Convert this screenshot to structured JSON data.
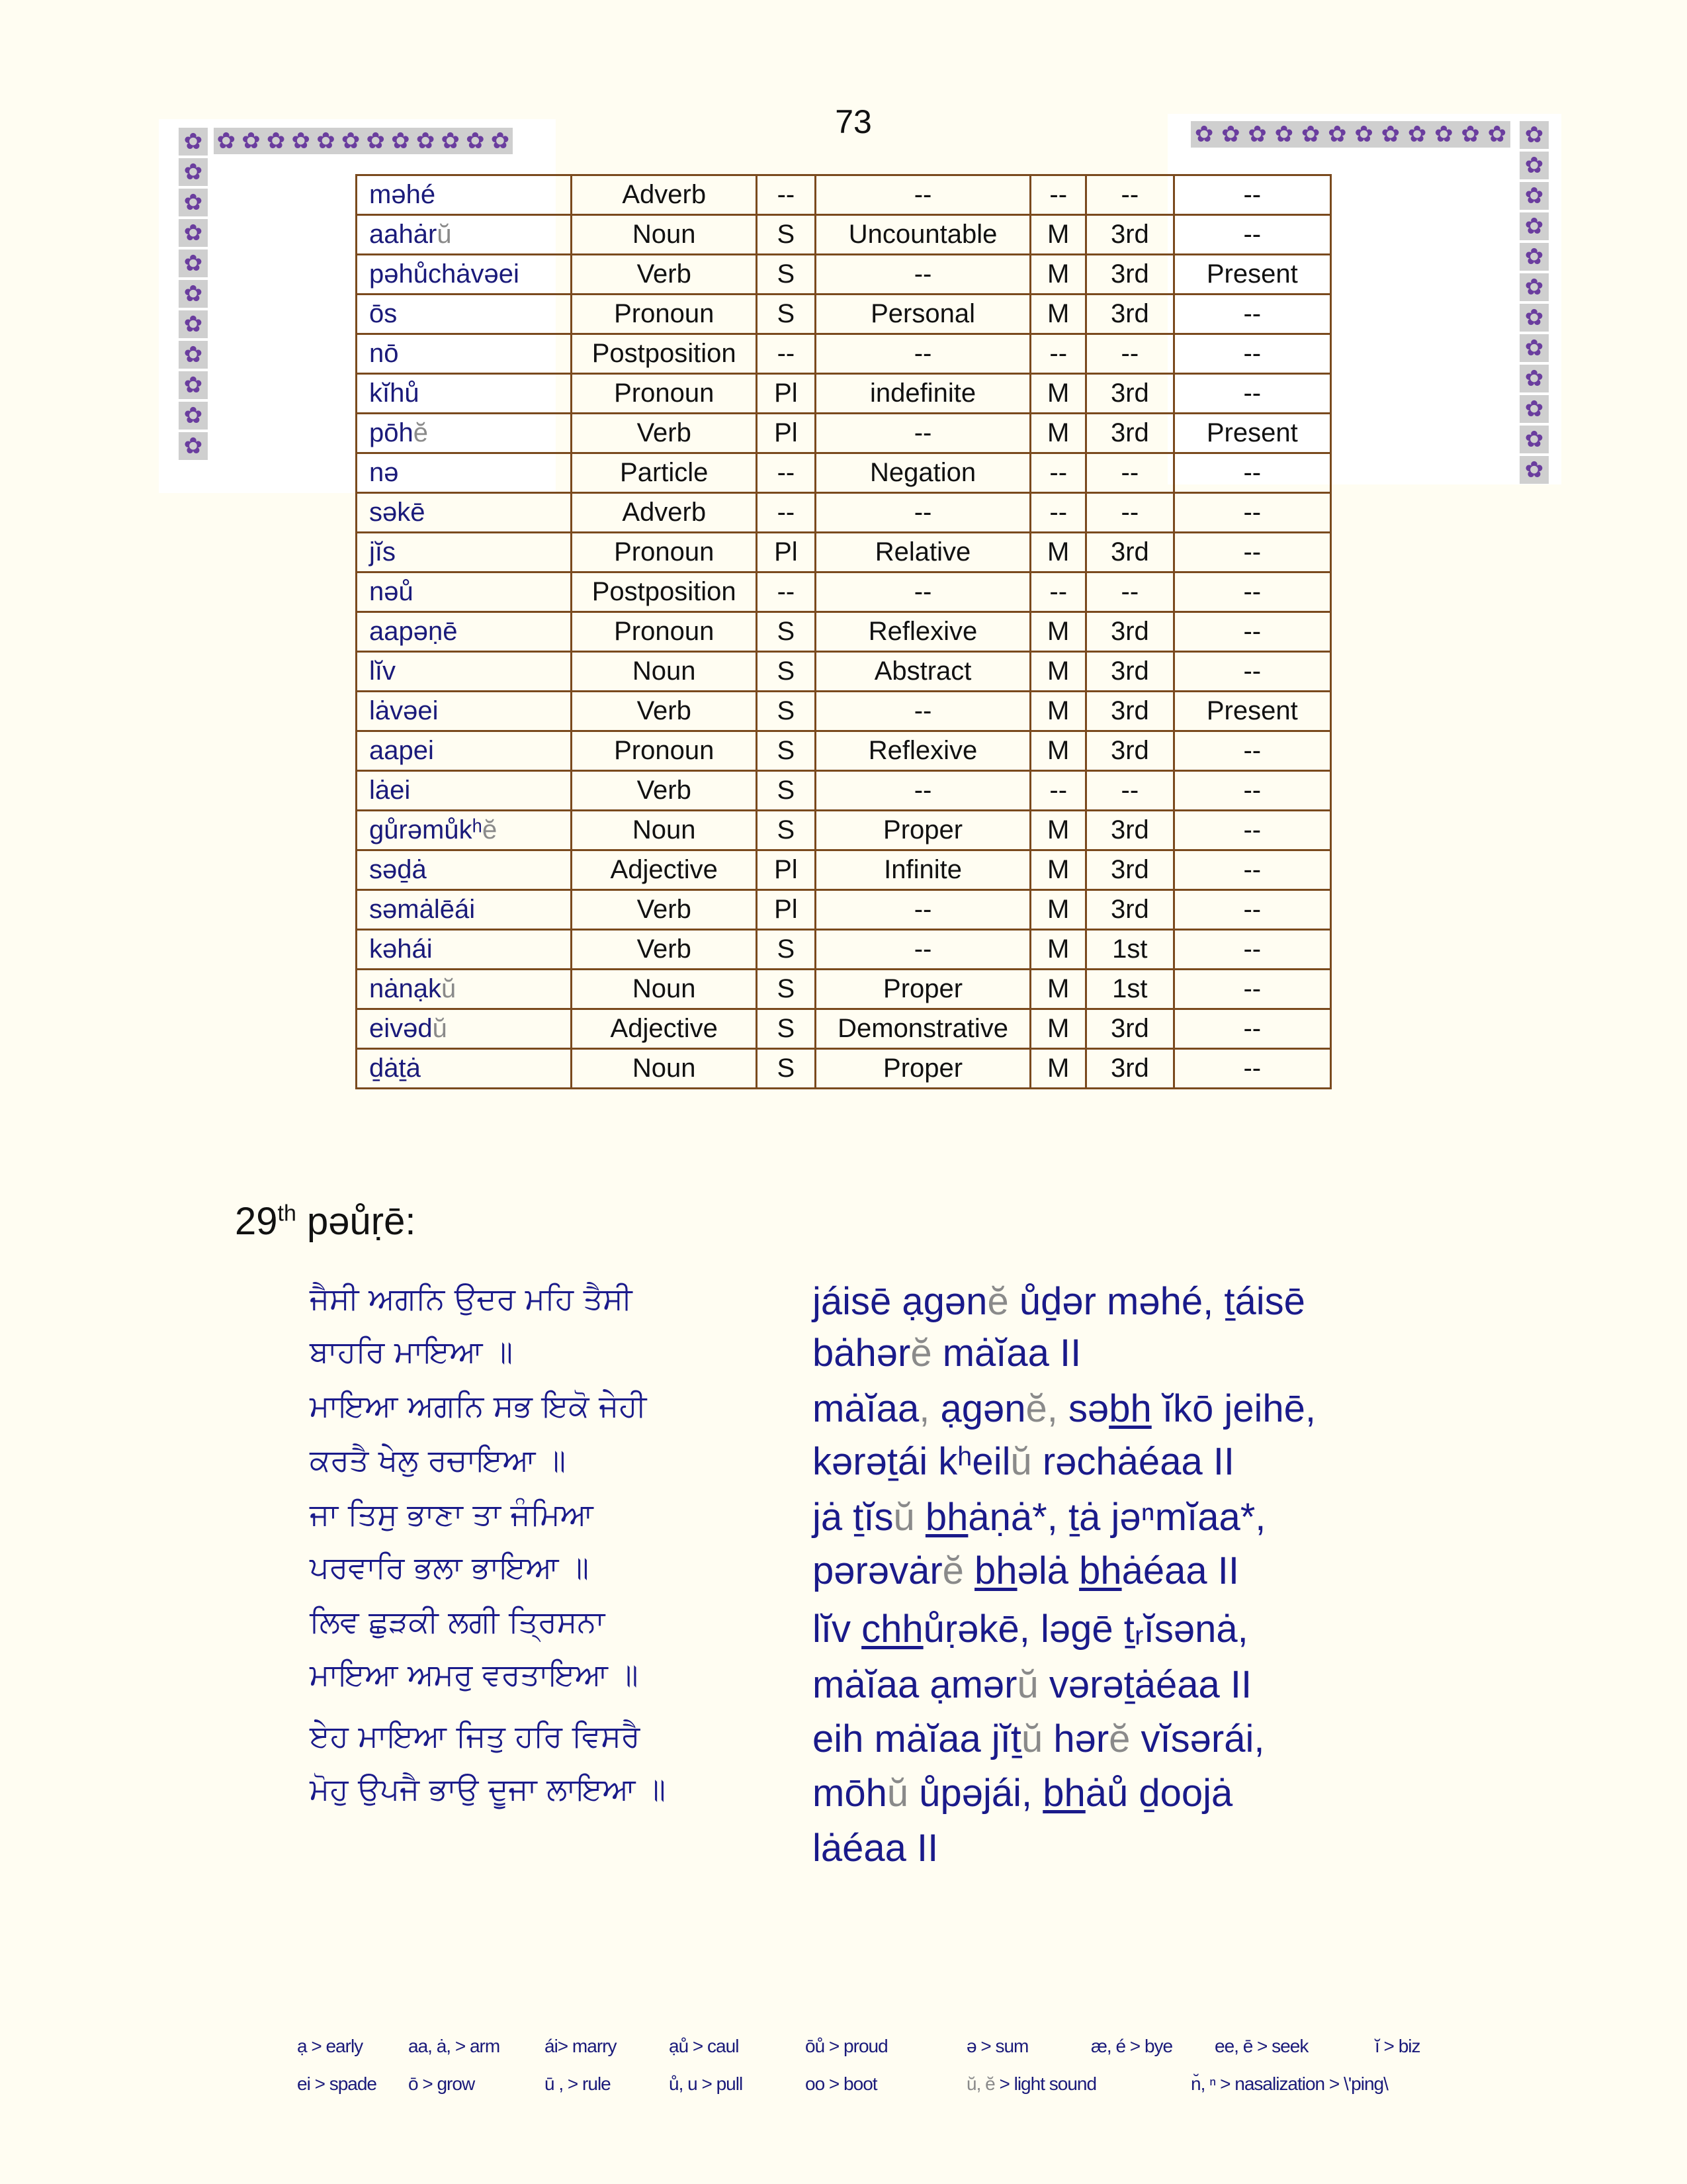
{
  "page_number": "73",
  "ornament": {
    "glyph": "✿",
    "color": "#6a3d9e",
    "background": "#cfcfcf",
    "icon": "flower-icon"
  },
  "table": {
    "rows": [
      {
        "word": [
          [
            "məhé",
            ""
          ]
        ],
        "pos": "Adverb",
        "num": "--",
        "type": "--",
        "gender": "--",
        "person": "--",
        "tense": "--"
      },
      {
        "word": [
          [
            "aahȧr",
            ""
          ],
          [
            "ŭ",
            "g"
          ]
        ],
        "pos": "Noun",
        "num": "S",
        "type": "Uncountable",
        "gender": "M",
        "person": "3rd",
        "tense": "--"
      },
      {
        "word": [
          [
            "pəhůchȧvəei",
            ""
          ]
        ],
        "pos": "Verb",
        "num": "S",
        "type": "--",
        "gender": "M",
        "person": "3rd",
        "tense": "Present"
      },
      {
        "word": [
          [
            "ōs",
            ""
          ]
        ],
        "pos": "Pronoun",
        "num": "S",
        "type": "Personal",
        "gender": "M",
        "person": "3rd",
        "tense": "--"
      },
      {
        "word": [
          [
            "nō",
            ""
          ]
        ],
        "pos": "Postposition",
        "num": "--",
        "type": "--",
        "gender": "--",
        "person": "--",
        "tense": "--"
      },
      {
        "word": [
          [
            "kĭhů",
            ""
          ]
        ],
        "pos": "Pronoun",
        "num": "Pl",
        "type": "indefinite",
        "gender": "M",
        "person": "3rd",
        "tense": "--"
      },
      {
        "word": [
          [
            "pōh",
            ""
          ],
          [
            "ĕ",
            "g"
          ]
        ],
        "pos": "Verb",
        "num": "Pl",
        "type": "--",
        "gender": "M",
        "person": "3rd",
        "tense": "Present"
      },
      {
        "word": [
          [
            "nə",
            ""
          ]
        ],
        "pos": "Particle",
        "num": "--",
        "type": "Negation",
        "gender": "--",
        "person": "--",
        "tense": "--"
      },
      {
        "word": [
          [
            "səkē",
            ""
          ]
        ],
        "pos": "Adverb",
        "num": "--",
        "type": "--",
        "gender": "--",
        "person": "--",
        "tense": "--"
      },
      {
        "word": [
          [
            "jĭs",
            ""
          ]
        ],
        "pos": "Pronoun",
        "num": "Pl",
        "type": "Relative",
        "gender": "M",
        "person": "3rd",
        "tense": "--"
      },
      {
        "word": [
          [
            "nəů",
            ""
          ]
        ],
        "pos": "Postposition",
        "num": "--",
        "type": "--",
        "gender": "--",
        "person": "--",
        "tense": "--"
      },
      {
        "word": [
          [
            "aapəṇē",
            ""
          ]
        ],
        "pos": "Pronoun",
        "num": "S",
        "type": "Reflexive",
        "gender": "M",
        "person": "3rd",
        "tense": "--"
      },
      {
        "word": [
          [
            "lĭv",
            ""
          ]
        ],
        "pos": "Noun",
        "num": "S",
        "type": "Abstract",
        "gender": "M",
        "person": "3rd",
        "tense": "--"
      },
      {
        "word": [
          [
            "lȧvəei",
            ""
          ]
        ],
        "pos": "Verb",
        "num": "S",
        "type": "--",
        "gender": "M",
        "person": "3rd",
        "tense": "Present"
      },
      {
        "word": [
          [
            "aapei",
            ""
          ]
        ],
        "pos": "Pronoun",
        "num": "S",
        "type": "Reflexive",
        "gender": "M",
        "person": "3rd",
        "tense": "--"
      },
      {
        "word": [
          [
            "lȧei",
            ""
          ]
        ],
        "pos": "Verb",
        "num": "S",
        "type": "--",
        "gender": "--",
        "person": "--",
        "tense": "--"
      },
      {
        "word": [
          [
            "gůrəmůkʰ",
            ""
          ],
          [
            "ĕ",
            "g"
          ]
        ],
        "pos": "Noun",
        "num": "S",
        "type": "Proper",
        "gender": "M",
        "person": "3rd",
        "tense": "--"
      },
      {
        "word": [
          [
            "səḏȧ",
            ""
          ]
        ],
        "pos": "Adjective",
        "num": "Pl",
        "type": "Infinite",
        "gender": "M",
        "person": "3rd",
        "tense": "--"
      },
      {
        "word": [
          [
            "səmȧlēái",
            ""
          ]
        ],
        "pos": "Verb",
        "num": "Pl",
        "type": "--",
        "gender": "M",
        "person": "3rd",
        "tense": "--"
      },
      {
        "word": [
          [
            "kəhái",
            ""
          ]
        ],
        "pos": "Verb",
        "num": "S",
        "type": "--",
        "gender": "M",
        "person": "1st",
        "tense": "--"
      },
      {
        "word": [
          [
            "nȧnạk",
            ""
          ],
          [
            "ŭ",
            "g"
          ]
        ],
        "pos": "Noun",
        "num": "S",
        "type": "Proper",
        "gender": "M",
        "person": "1st",
        "tense": "--"
      },
      {
        "word": [
          [
            "eivəd",
            ""
          ],
          [
            "ŭ",
            "g"
          ]
        ],
        "pos": "Adjective",
        "num": "S",
        "type": "Demonstrative",
        "gender": "M",
        "person": "3rd",
        "tense": "--"
      },
      {
        "word": [
          [
            "ḏȧṯȧ",
            ""
          ]
        ],
        "pos": "Noun",
        "num": "S",
        "type": "Proper",
        "gender": "M",
        "person": "3rd",
        "tense": "--"
      }
    ]
  },
  "section": {
    "number": "29",
    "suffix": "th",
    "title": "pəůṛē:"
  },
  "gurmukhi_lines": [
    "ਜੈਸੀ ਅਗਨਿ ਉਦਰ ਮਹਿ ਤੈਸੀ",
    "ਬਾਹਰਿ ਮਾਇਆ ॥",
    "ਮਾਇਆ ਅਗਨਿ ਸਭ ਇਕੋ ਜੇਹੀ",
    "ਕਰਤੈ ਖੇਲੁ ਰਚਾਇਆ ॥",
    "ਜਾ ਤਿਸੁ ਭਾਣਾ ਤਾ ਜੰਮਿਆ",
    "ਪਰਵਾਰਿ ਭਲਾ ਭਾਇਆ ॥",
    "ਲਿਵ ਛੁੜਕੀ ਲਗੀ ਤ੍ਰਿਸਨਾ",
    "ਮਾਇਆ ਅਮਰੁ ਵਰਤਾਇਆ ॥",
    "ਏਹ ਮਾਇਆ ਜਿਤੁ ਹਰਿ ਵਿਸਰੈ",
    "ਮੋਹੁ ਉਪਜੈ ਭਾਉ ਦੂਜਾ ਲਾਇਆ ॥"
  ],
  "transliteration_lines": [
    [
      [
        "jáisē  ạgən",
        ""
      ],
      [
        "ĕ",
        "g"
      ],
      [
        " ůḏər məhé, ṯáisē",
        ""
      ]
    ],
    [
      [
        "bȧhər",
        ""
      ],
      [
        "ĕ",
        "g"
      ],
      [
        "  mȧĭaa II",
        ""
      ]
    ],
    [
      [
        "mȧĭaa",
        ""
      ],
      [
        ",",
        "g"
      ],
      [
        " ạgən",
        ""
      ],
      [
        "ĕ,",
        "g"
      ],
      [
        " sə",
        ""
      ],
      [
        "bh",
        "u"
      ],
      [
        " ĭkō jeihē,",
        ""
      ]
    ],
    [
      [
        "kərəṯái  kʰeil",
        ""
      ],
      [
        "ŭ",
        "g"
      ],
      [
        "  rəchȧéaa II",
        ""
      ]
    ],
    [
      [
        "jȧ  ṯĭs",
        ""
      ],
      [
        "ŭ",
        "g"
      ],
      [
        "  ",
        ""
      ],
      [
        "bh",
        "u"
      ],
      [
        "ȧṇȧ*,  ṯȧ  jəⁿmĭaa*,",
        ""
      ]
    ],
    [
      [
        "pərəvȧr",
        ""
      ],
      [
        "ĕ",
        "g"
      ],
      [
        " ",
        ""
      ],
      [
        "bh",
        "u"
      ],
      [
        "əlȧ  ",
        ""
      ],
      [
        "bh",
        "u"
      ],
      [
        "ȧéaa II",
        ""
      ]
    ],
    [
      [
        "lĭv  ",
        ""
      ],
      [
        "chh",
        "u"
      ],
      [
        "ůṛəkē,  ləgē    ṯᵣĭsənȧ,",
        ""
      ]
    ],
    [
      [
        "mȧĭaa  ạmər",
        ""
      ],
      [
        "ŭ",
        "g"
      ],
      [
        " vərəṯȧéaa II",
        ""
      ]
    ],
    [
      [
        "eih  mȧĭaa  jĭṯ",
        ""
      ],
      [
        "ŭ",
        "g"
      ],
      [
        "  hər",
        ""
      ],
      [
        "ĕ",
        "g"
      ],
      [
        "  vĭsərái,",
        ""
      ]
    ],
    [
      [
        "mōh",
        ""
      ],
      [
        "ŭ",
        "g"
      ],
      [
        "  ůpəjái,  ",
        ""
      ],
      [
        "bh",
        "u"
      ],
      [
        "ȧů  ḏoojȧ",
        ""
      ]
    ],
    [
      [
        "lȧéaa II",
        ""
      ]
    ]
  ],
  "legend": {
    "row1": [
      [
        [
          "ạ > early",
          ""
        ]
      ],
      [
        [
          "aa, ȧ, > arm",
          ""
        ]
      ],
      [
        [
          "ái> marry",
          ""
        ]
      ],
      [
        [
          "ạů > caul",
          ""
        ]
      ],
      [
        [
          "ōů > proud",
          ""
        ]
      ],
      [
        [
          "ə > sum",
          ""
        ]
      ],
      [
        [
          "æ, é > bye",
          ""
        ]
      ],
      [
        [
          "ee, ē  > seek",
          ""
        ]
      ],
      [
        [
          "ĭ > biz",
          ""
        ]
      ]
    ],
    "row2": [
      [
        [
          "ei > spade",
          ""
        ]
      ],
      [
        [
          "ō > grow",
          ""
        ]
      ],
      [
        [
          "ū , > rule",
          ""
        ]
      ],
      [
        [
          "ů, u > pull",
          ""
        ]
      ],
      [
        [
          "oo > boot",
          ""
        ]
      ],
      [
        [
          "ŭ, ĕ",
          "g"
        ],
        [
          " > light sound",
          ""
        ]
      ],
      [
        [
          "n̆, ⁿ  > nasalization > \\'ping\\",
          ""
        ]
      ]
    ]
  },
  "colors": {
    "text_blue": "#1a1a8a",
    "light_sound": "#8a8a8a",
    "table_border": "#7a4a1e"
  }
}
